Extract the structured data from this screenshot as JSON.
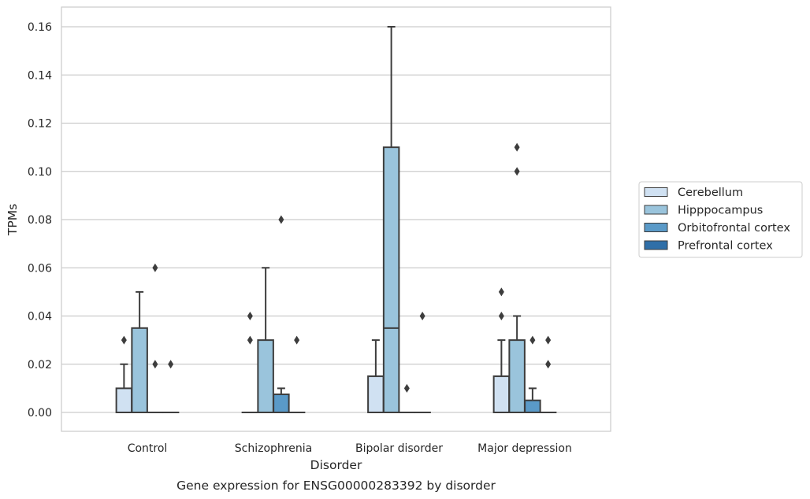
{
  "chart_data": {
    "type": "box",
    "caption": "Gene expression for ENSG00000283392 by disorder",
    "xlabel": "Disorder",
    "ylabel": "TPMs",
    "ylim": [
      -0.008,
      0.168
    ],
    "yticks": [
      0.0,
      0.02,
      0.04,
      0.06,
      0.08,
      0.1,
      0.12,
      0.14,
      0.16
    ],
    "ytick_labels": [
      "0.00",
      "0.02",
      "0.04",
      "0.06",
      "0.08",
      "0.10",
      "0.12",
      "0.14",
      "0.16"
    ],
    "grid": true,
    "legend_position": "right",
    "categories": [
      "Control",
      "Schizophrenia",
      "Bipolar disorder",
      "Major depression"
    ],
    "series": [
      {
        "name": "Cerebellum",
        "color": "#d0e1f2",
        "boxes": [
          {
            "whislo": 0,
            "q1": 0,
            "med": 0,
            "q3": 0.01,
            "whishi": 0.02,
            "fliers": [
              0.03
            ]
          },
          {
            "whislo": 0,
            "q1": 0,
            "med": 0,
            "q3": 0,
            "whishi": 0,
            "fliers": [
              0.03,
              0.04
            ]
          },
          {
            "whislo": 0,
            "q1": 0,
            "med": 0,
            "q3": 0.015,
            "whishi": 0.03,
            "fliers": []
          },
          {
            "whislo": 0,
            "q1": 0,
            "med": 0,
            "q3": 0.015,
            "whishi": 0.03,
            "fliers": [
              0.04,
              0.05
            ]
          }
        ]
      },
      {
        "name": "Hipppocampus",
        "color": "#9ac4dc",
        "boxes": [
          {
            "whislo": 0,
            "q1": 0,
            "med": 0,
            "q3": 0.035,
            "whishi": 0.05,
            "fliers": []
          },
          {
            "whislo": 0,
            "q1": 0,
            "med": 0,
            "q3": 0.03,
            "whishi": 0.06,
            "fliers": []
          },
          {
            "whislo": 0,
            "q1": 0,
            "med": 0.035,
            "q3": 0.11,
            "whishi": 0.16,
            "fliers": []
          },
          {
            "whislo": 0,
            "q1": 0,
            "med": 0,
            "q3": 0.03,
            "whishi": 0.04,
            "fliers": [
              0.1,
              0.11
            ]
          }
        ]
      },
      {
        "name": "Orbitofrontal cortex",
        "color": "#5a9ac8",
        "boxes": [
          {
            "whislo": 0,
            "q1": 0,
            "med": 0,
            "q3": 0,
            "whishi": 0,
            "fliers": [
              0.02,
              0.06
            ]
          },
          {
            "whislo": 0,
            "q1": 0,
            "med": 0,
            "q3": 0.0075,
            "whishi": 0.01,
            "fliers": [
              0.08
            ]
          },
          {
            "whislo": 0,
            "q1": 0,
            "med": 0,
            "q3": 0,
            "whishi": 0,
            "fliers": [
              0.01
            ]
          },
          {
            "whislo": 0,
            "q1": 0,
            "med": 0,
            "q3": 0.005,
            "whishi": 0.01,
            "fliers": [
              0.03
            ]
          }
        ]
      },
      {
        "name": "Prefrontal cortex",
        "color": "#2f6fa8",
        "boxes": [
          {
            "whislo": 0,
            "q1": 0,
            "med": 0,
            "q3": 0,
            "whishi": 0,
            "fliers": [
              0.02
            ]
          },
          {
            "whislo": 0,
            "q1": 0,
            "med": 0,
            "q3": 0,
            "whishi": 0,
            "fliers": [
              0.03
            ]
          },
          {
            "whislo": 0,
            "q1": 0,
            "med": 0,
            "q3": 0,
            "whishi": 0,
            "fliers": [
              0.04
            ]
          },
          {
            "whislo": 0,
            "q1": 0,
            "med": 0,
            "q3": 0,
            "whishi": 0,
            "fliers": [
              0.02,
              0.03
            ]
          }
        ]
      }
    ]
  }
}
